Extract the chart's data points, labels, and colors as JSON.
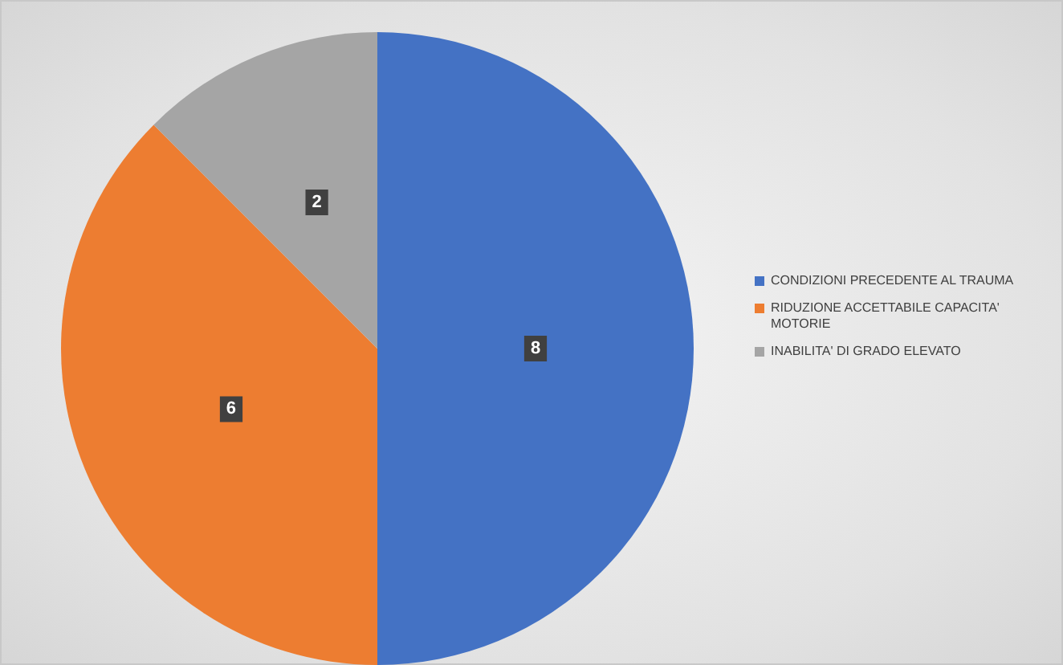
{
  "chart_data": {
    "type": "pie",
    "categories": [
      "CONDIZIONI PRECEDENTE AL TRAUMA",
      "RIDUZIONE ACCETTABILE CAPACITA' MOTORIE",
      "INABILITA' DI GRADO ELEVATO"
    ],
    "values": [
      8,
      6,
      2
    ],
    "colors": [
      "#4472c4",
      "#ed7d31",
      "#a5a5a5"
    ],
    "data_labels": true,
    "legend": "right"
  }
}
